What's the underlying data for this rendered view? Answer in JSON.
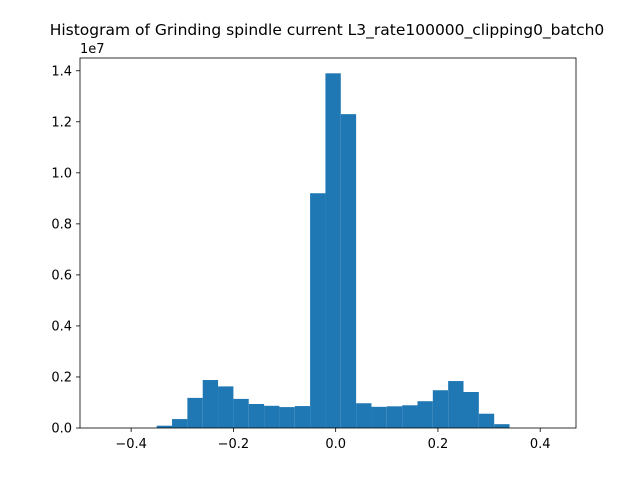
{
  "chart_data": {
    "type": "bar",
    "title": "Histogram of Grinding spindle current L3_rate100000_clipping0_batch0",
    "xlabel": "",
    "ylabel": "",
    "y_offset_label": "1e7",
    "xlim": [
      -0.5,
      0.47
    ],
    "ylim": [
      0,
      14500000
    ],
    "xticks": [
      -0.4,
      -0.2,
      0.0,
      0.2,
      0.4
    ],
    "xtick_labels": [
      "−0.4",
      "−0.2",
      "0.0",
      "0.2",
      "0.4"
    ],
    "yticks": [
      0,
      2000000,
      4000000,
      6000000,
      8000000,
      10000000,
      12000000,
      14000000
    ],
    "ytick_labels": [
      "0.0",
      "0.2",
      "0.4",
      "0.6",
      "0.8",
      "1.0",
      "1.2",
      "1.4"
    ],
    "bar_color": "#1f77b4",
    "bins": [
      [
        -0.46,
        -0.43,
        0
      ],
      [
        -0.43,
        -0.4,
        0
      ],
      [
        -0.4,
        -0.37,
        0
      ],
      [
        -0.35,
        -0.32,
        90000
      ],
      [
        -0.32,
        -0.29,
        350000
      ],
      [
        -0.29,
        -0.26,
        1180000
      ],
      [
        -0.26,
        -0.23,
        1880000
      ],
      [
        -0.23,
        -0.2,
        1630000
      ],
      [
        -0.2,
        -0.17,
        1140000
      ],
      [
        -0.17,
        -0.14,
        940000
      ],
      [
        -0.14,
        -0.11,
        870000
      ],
      [
        -0.11,
        -0.08,
        820000
      ],
      [
        -0.08,
        -0.05,
        860000
      ],
      [
        -0.05,
        -0.02,
        9200000
      ],
      [
        -0.02,
        0.01,
        13900000
      ],
      [
        0.01,
        0.04,
        12300000
      ],
      [
        0.04,
        0.07,
        970000
      ],
      [
        0.07,
        0.1,
        830000
      ],
      [
        0.1,
        0.13,
        850000
      ],
      [
        0.13,
        0.16,
        890000
      ],
      [
        0.16,
        0.19,
        1050000
      ],
      [
        0.19,
        0.22,
        1480000
      ],
      [
        0.22,
        0.25,
        1840000
      ],
      [
        0.25,
        0.28,
        1410000
      ],
      [
        0.28,
        0.31,
        560000
      ],
      [
        0.31,
        0.34,
        150000
      ]
    ]
  }
}
